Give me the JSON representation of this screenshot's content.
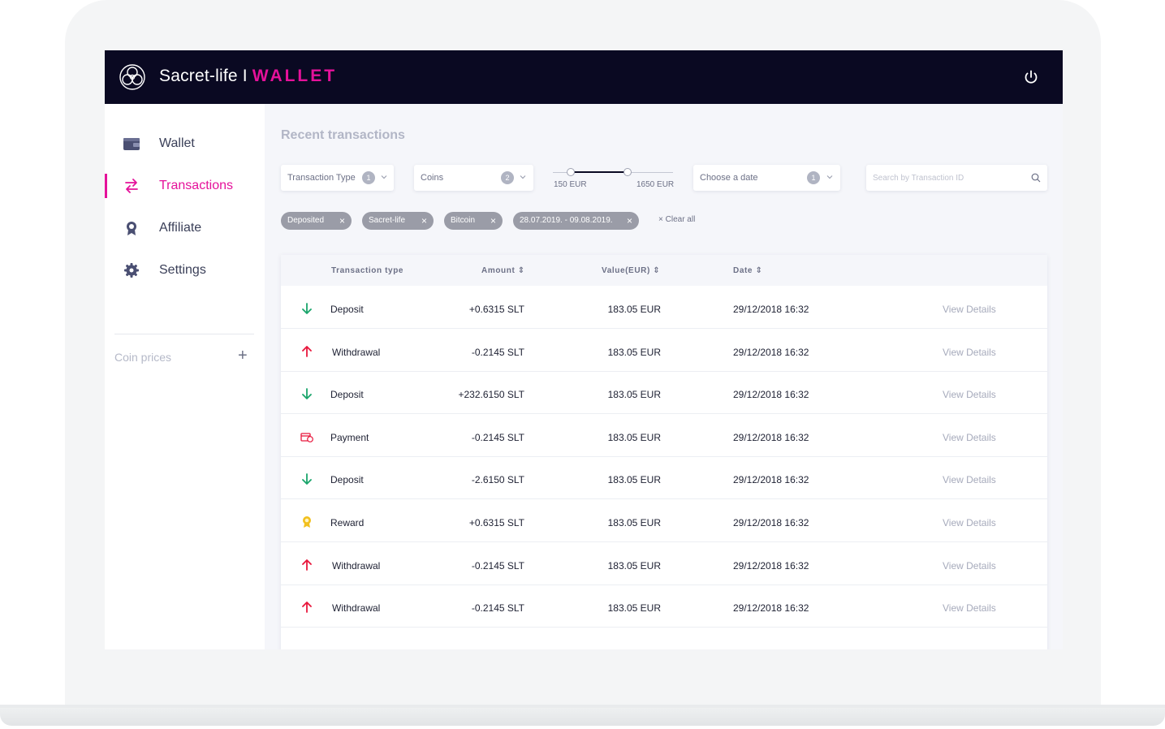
{
  "header": {
    "brand_name": "Sacret-life",
    "brand_separator": "I",
    "brand_product": "WALLET"
  },
  "sidebar": {
    "items": [
      {
        "label": "Wallet",
        "icon": "wallet-icon",
        "active": false
      },
      {
        "label": "Transactions",
        "icon": "transfer-arrows-icon",
        "active": true
      },
      {
        "label": "Affiliate",
        "icon": "award-icon",
        "active": false
      },
      {
        "label": "Settings",
        "icon": "gear-icon",
        "active": false
      }
    ],
    "coin_prices_label": "Coin prices",
    "coin_prices_add": "+"
  },
  "main": {
    "title": "Recent transactions",
    "filters": {
      "transaction_type": {
        "label": "Transaction Type",
        "count": "1"
      },
      "coins": {
        "label": "Coins",
        "count": "2"
      },
      "range": {
        "min_label": "150 EUR",
        "max_label": "1650 EUR"
      },
      "date": {
        "label": "Choose a date",
        "count": "1"
      },
      "search_placeholder": "Search by Transaction ID"
    },
    "chips": [
      {
        "label": "Deposited"
      },
      {
        "label": "Sacret-life"
      },
      {
        "label": "Bitcoin"
      },
      {
        "label": "28.07.2019. - 09.08.2019."
      }
    ],
    "clear_all": "Clear all",
    "table": {
      "headers": {
        "type": "Transaction type",
        "amount": "Amount",
        "value": "Value(EUR)",
        "date": "Date"
      },
      "rows": [
        {
          "type": "Deposit",
          "icon": "arrow-down-icon",
          "amount": "+0.6315 SLT",
          "value": "183.05 EUR",
          "date": "29/12/2018 16:32",
          "action": "View Details"
        },
        {
          "type": "Withdrawal",
          "icon": "arrow-up-icon",
          "amount": "-0.2145 SLT",
          "value": "183.05 EUR",
          "date": "29/12/2018 16:32",
          "action": "View Details"
        },
        {
          "type": "Deposit",
          "icon": "arrow-down-icon",
          "amount": "+232.6150 SLT",
          "value": "183.05 EUR",
          "date": "29/12/2018 16:32",
          "action": "View Details"
        },
        {
          "type": "Payment",
          "icon": "payment-icon",
          "amount": "-0.2145 SLT",
          "value": "183.05 EUR",
          "date": "29/12/2018 16:32",
          "action": "View Details"
        },
        {
          "type": "Deposit",
          "icon": "arrow-down-icon",
          "amount": "-2.6150 SLT",
          "value": "183.05 EUR",
          "date": "29/12/2018 16:32",
          "action": "View Details"
        },
        {
          "type": "Reward",
          "icon": "reward-medal-icon",
          "amount": "+0.6315 SLT",
          "value": "183.05 EUR",
          "date": "29/12/2018 16:32",
          "action": "View Details"
        },
        {
          "type": "Withdrawal",
          "icon": "arrow-up-icon",
          "amount": "-0.2145 SLT",
          "value": "183.05 EUR",
          "date": "29/12/2018 16:32",
          "action": "View Details"
        },
        {
          "type": "Withdrawal",
          "icon": "arrow-up-icon",
          "amount": "-0.2145 SLT",
          "value": "183.05 EUR",
          "date": "29/12/2018 16:32",
          "action": "View Details"
        }
      ]
    }
  },
  "colors": {
    "accent": "#e5119a",
    "header_bg": "#0a0922",
    "deposit": "#1aa56b",
    "withdrawal": "#e8173c",
    "reward": "#f2c01e"
  }
}
